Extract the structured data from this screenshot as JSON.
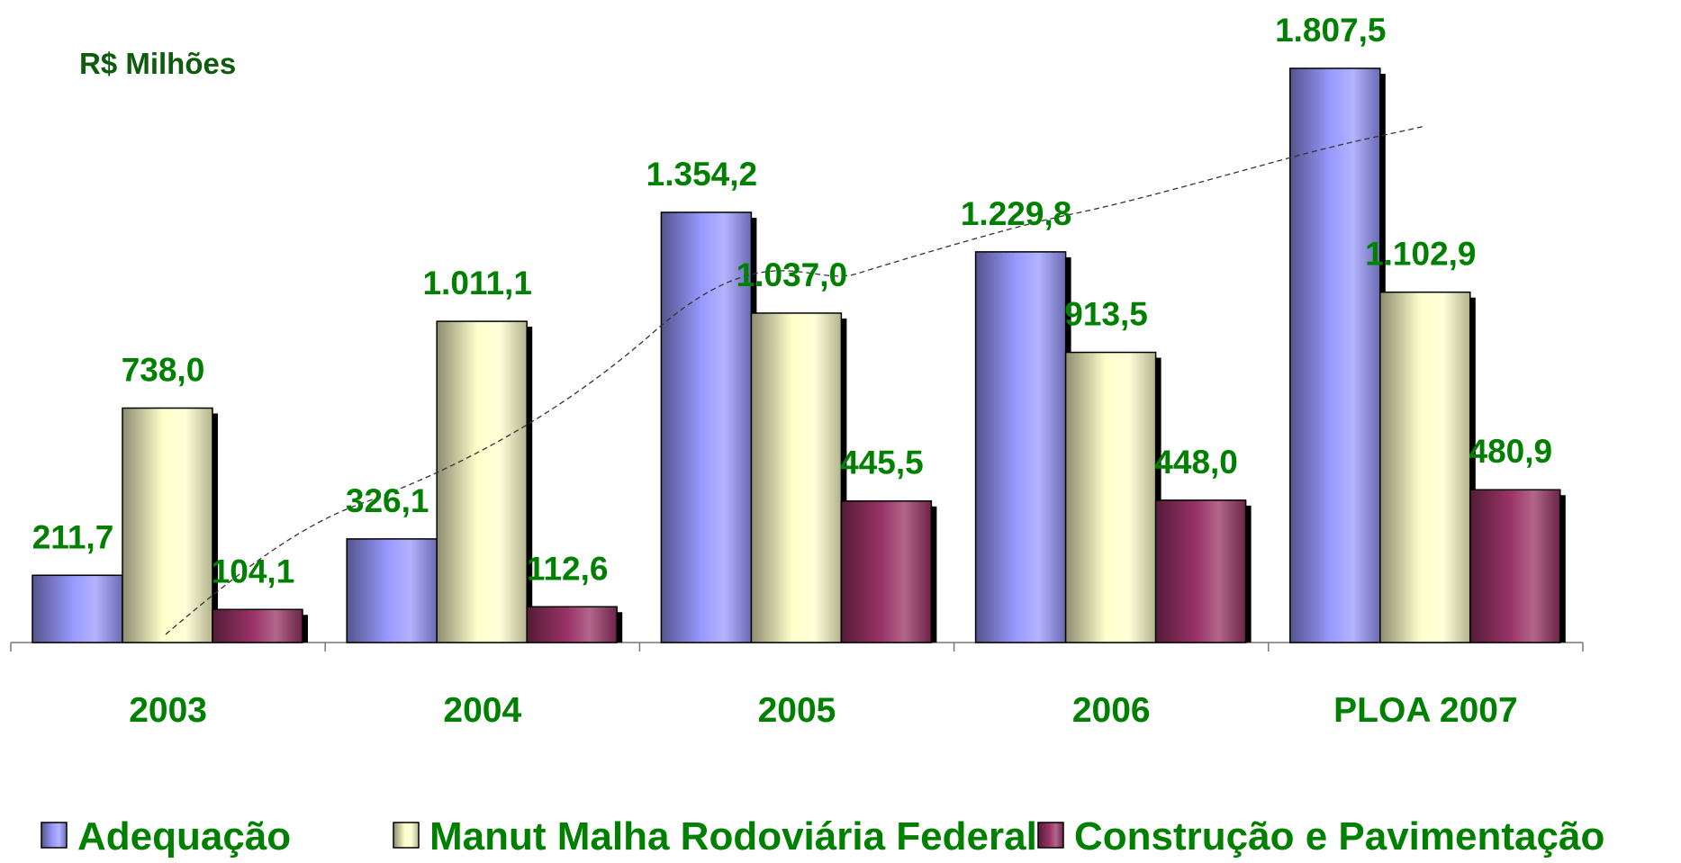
{
  "chart_data": {
    "type": "bar",
    "title": "R$ Milhões",
    "categories": [
      "2003",
      "2004",
      "2005",
      "2006",
      "PLOA 2007"
    ],
    "series": [
      {
        "name": "Adequação",
        "color": "#9999ff",
        "values": [
          211.7,
          326.1,
          1354.2,
          1229.8,
          1807.5
        ],
        "value_labels": [
          "211,7",
          "326,1",
          "1.354,2",
          "1.229,8",
          "1.807,5"
        ]
      },
      {
        "name": "Manut Malha Rodoviária Federal",
        "color": "#ffffcc",
        "values": [
          738.0,
          1011.1,
          1037.0,
          913.5,
          1102.9
        ],
        "value_labels": [
          "738,0",
          "1.011,1",
          "1.037,0",
          "913,5",
          "1.102,9"
        ]
      },
      {
        "name": "Construção e Pavimentação",
        "color": "#993366",
        "values": [
          104.1,
          112.6,
          445.5,
          448.0,
          480.9
        ],
        "value_labels": [
          "104,1",
          "112,6",
          "445,5",
          "448,0",
          "480,9"
        ]
      }
    ],
    "ylim": [
      0,
      2000
    ]
  }
}
